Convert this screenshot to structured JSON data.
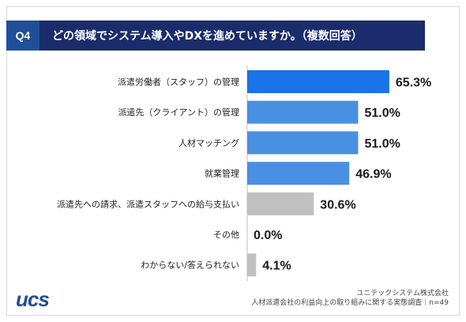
{
  "header": {
    "badge": "Q4",
    "question": "どの領域でシステム導入やDXを進めていますか。（複数回答）"
  },
  "chart_data": {
    "type": "bar",
    "orientation": "horizontal",
    "categories": [
      "派遣労働者（スタッフ）の管理",
      "派遣先（クライアント）の管理",
      "人材マッチング",
      "就業管理",
      "派遣先への請求、派遣スタッフへの給与支払い",
      "その他",
      "わからない/答えられない"
    ],
    "values": [
      65.3,
      51.0,
      51.0,
      46.9,
      30.6,
      0.0,
      4.1
    ],
    "value_labels": [
      "65.3%",
      "51.0%",
      "51.0%",
      "46.9%",
      "30.6%",
      "0.0%",
      "4.1%"
    ],
    "bar_colors": [
      "#1a73e8",
      "#4a90e2",
      "#4a90e2",
      "#4a90e2",
      "#c0c0c0",
      "#c0c0c0",
      "#c0c0c0"
    ],
    "xlim": [
      0,
      100
    ],
    "grid": false
  },
  "footer": {
    "logo_text": "ucs",
    "source_line1": "ユニテックシステム株式会社",
    "source_line2": "人材派遣会社の利益向上の取り組みに関する実態調査｜n=49"
  }
}
